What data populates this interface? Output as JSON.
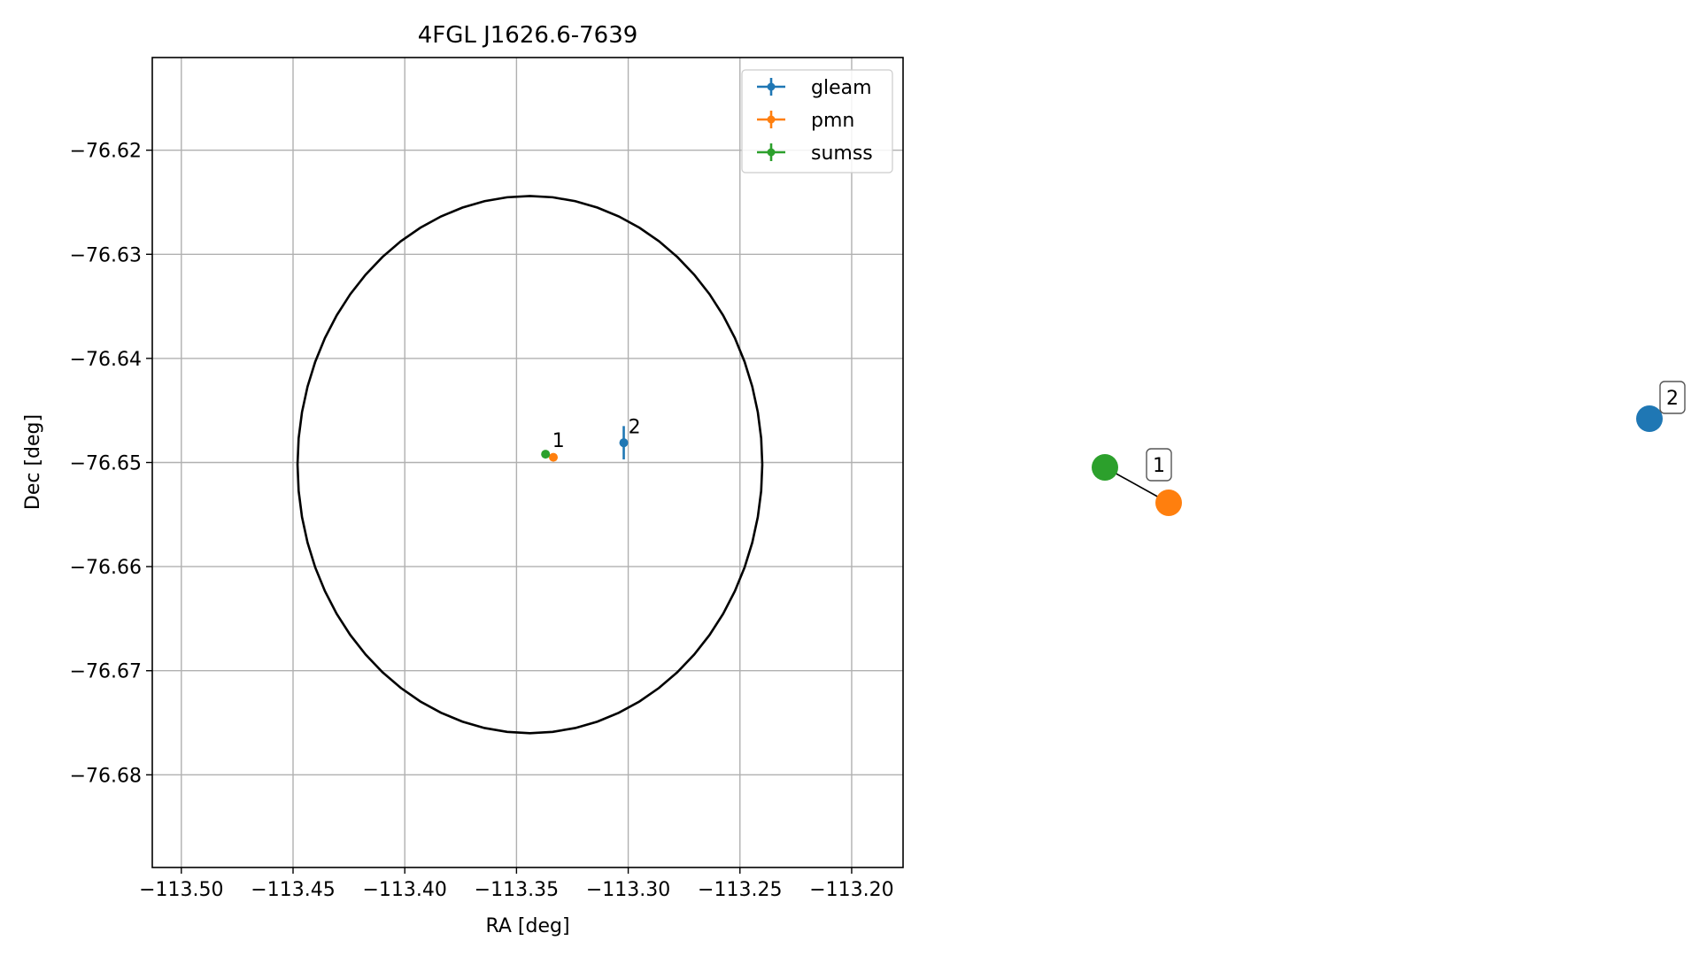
{
  "chart_data": [
    {
      "type": "scatter",
      "title": "4FGL J1626.6-7639",
      "xlabel": "RA [deg]",
      "ylabel": "Dec [deg]",
      "xlim": [
        -113.513,
        -113.177
      ],
      "ylim": [
        -76.6889,
        -76.6111
      ],
      "xticks": [
        -113.5,
        -113.45,
        -113.4,
        -113.35,
        -113.3,
        -113.25,
        -113.2
      ],
      "xtick_labels": [
        "−113.50",
        "−113.45",
        "−113.40",
        "−113.35",
        "−113.30",
        "−113.25",
        "−113.20"
      ],
      "yticks": [
        -76.62,
        -76.63,
        -76.64,
        -76.65,
        -76.66,
        -76.67,
        -76.68
      ],
      "ytick_labels": [
        "−76.62",
        "−76.63",
        "−76.64",
        "−76.65",
        "−76.66",
        "−76.67",
        "−76.68"
      ],
      "grid": true,
      "legend_position": "top-right",
      "series": [
        {
          "name": "gleam",
          "color": "#1f77b4",
          "points": [
            {
              "x": -113.302,
              "y": -76.6481,
              "xerr": 0.0007,
              "yerr": 0.0016
            }
          ]
        },
        {
          "name": "pmn",
          "color": "#ff7f0e",
          "points": [
            {
              "x": -113.3335,
              "y": -76.6495,
              "xerr": 0.0,
              "yerr": 0.0
            }
          ]
        },
        {
          "name": "sumss",
          "color": "#2ca02c",
          "points": [
            {
              "x": -113.337,
              "y": -76.6492,
              "xerr": 0.0,
              "yerr": 0.0
            }
          ]
        }
      ],
      "ellipse": {
        "center_x": -113.344,
        "center_y": -76.6502,
        "semi_x": 0.104,
        "semi_y": 0.0258,
        "color": "#000000"
      },
      "annotations": [
        {
          "text": "1",
          "x": -113.334,
          "y": -76.6485
        },
        {
          "text": "2",
          "x": -113.3,
          "y": -76.6472
        }
      ]
    },
    {
      "type": "network",
      "nodes": [
        {
          "id": "sumss",
          "color": "#2ca02c"
        },
        {
          "id": "pmn",
          "color": "#ff7f0e"
        },
        {
          "id": "gleam",
          "color": "#1f77b4"
        }
      ],
      "edges": [
        [
          "sumss",
          "pmn"
        ]
      ],
      "labels": [
        {
          "text": "1",
          "group": "sumss-pmn"
        },
        {
          "text": "2",
          "group": "gleam"
        }
      ]
    }
  ]
}
